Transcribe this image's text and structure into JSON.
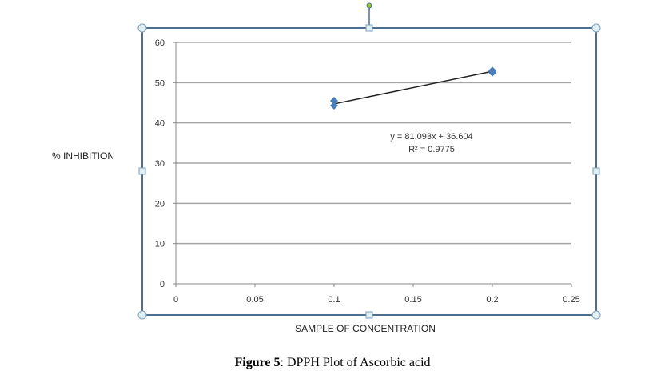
{
  "chart_data": {
    "type": "scatter",
    "title": "",
    "xlabel": "SAMPLE OF CONCENTRATION",
    "ylabel": "% INHIBITION",
    "xlim": [
      0,
      0.25
    ],
    "ylim": [
      0,
      60
    ],
    "xticks": [
      "0",
      "0.05",
      "0.1",
      "0.15",
      "0.2",
      "0.25"
    ],
    "yticks": [
      "0",
      "10",
      "20",
      "30",
      "40",
      "50",
      "60"
    ],
    "grid": "horizontal",
    "series": [
      {
        "name": "DPPH",
        "color": "#4a7ebb",
        "x": [
          0.1,
          0.1,
          0.2,
          0.2
        ],
        "y": [
          45.5,
          44.3,
          53.0,
          52.5
        ]
      }
    ],
    "trendline": {
      "slope": 81.093,
      "intercept": 36.604,
      "x_range": [
        0.1,
        0.2
      ],
      "equation": "y = 81.093x + 36.604",
      "r2": "R² = 0.9775"
    }
  },
  "caption": {
    "label": "Figure 5",
    "text": ": DPPH Plot of Ascorbic acid"
  }
}
